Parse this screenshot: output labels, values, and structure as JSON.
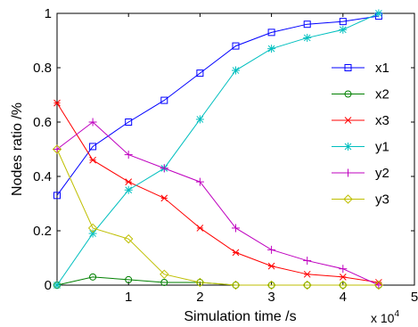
{
  "chart_data": {
    "type": "line",
    "xlabel": "Simulation time /s",
    "ylabel": "Nodes ratio /%",
    "x_exponent": {
      "base": "x 10",
      "power": "4"
    },
    "xlim": [
      0,
      5
    ],
    "ylim": [
      0,
      1
    ],
    "xticks": [
      1,
      2,
      3,
      4,
      5
    ],
    "xtick_labels": [
      "1",
      "2",
      "3",
      "4",
      "5"
    ],
    "yticks": [
      0,
      0.2,
      0.4,
      0.6,
      0.8,
      1
    ],
    "ytick_labels": [
      "0",
      "0.2",
      "0.4",
      "0.6",
      "0.8",
      "1"
    ],
    "grid": false,
    "legend_position": "right",
    "x": [
      0,
      0.5,
      1,
      1.5,
      2,
      2.5,
      3,
      3.5,
      4,
      4.5
    ],
    "series": [
      {
        "name": "x1",
        "color": "#0000ff",
        "marker": "square",
        "values": [
          0.33,
          0.51,
          0.6,
          0.68,
          0.78,
          0.88,
          0.93,
          0.96,
          0.97,
          0.99
        ]
      },
      {
        "name": "x2",
        "color": "#008000",
        "marker": "circle",
        "values": [
          0.0,
          0.03,
          0.02,
          0.01,
          0.01,
          0.0,
          0.0,
          0.0,
          0.0,
          0.0
        ]
      },
      {
        "name": "x3",
        "color": "#ff0000",
        "marker": "star",
        "values": [
          0.67,
          0.46,
          0.38,
          0.32,
          0.21,
          0.12,
          0.07,
          0.04,
          0.03,
          0.01
        ]
      },
      {
        "name": "y1",
        "color": "#00bfbf",
        "marker": "asterisk",
        "values": [
          0.0,
          0.19,
          0.35,
          0.43,
          0.61,
          0.79,
          0.87,
          0.91,
          0.94,
          1.0
        ]
      },
      {
        "name": "y2",
        "color": "#bf00bf",
        "marker": "plus",
        "values": [
          0.5,
          0.6,
          0.48,
          0.43,
          0.38,
          0.21,
          0.13,
          0.09,
          0.06,
          0.0
        ]
      },
      {
        "name": "y3",
        "color": "#bfbf00",
        "marker": "diamond",
        "values": [
          0.5,
          0.21,
          0.17,
          0.04,
          0.01,
          0.0,
          0.0,
          0.0,
          0.0,
          0.0
        ]
      }
    ]
  }
}
